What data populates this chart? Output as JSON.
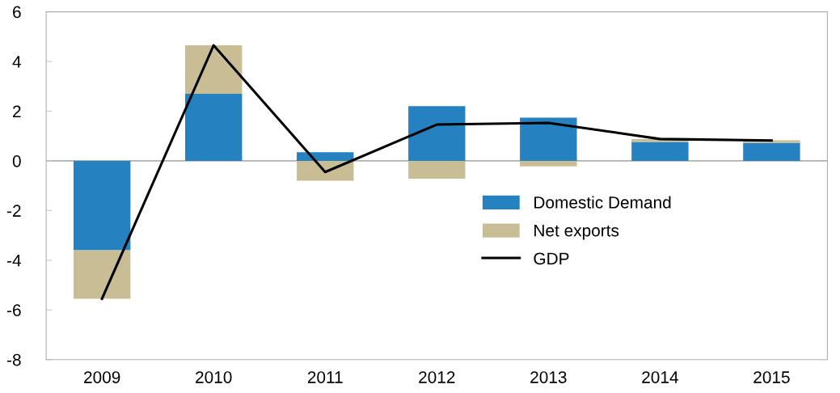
{
  "chart_data": {
    "type": "bar",
    "stacked": true,
    "categories": [
      "2009",
      "2010",
      "2011",
      "2012",
      "2013",
      "2014",
      "2015"
    ],
    "series": [
      {
        "name": "Domestic Demand",
        "color": "#2581bf",
        "values": [
          -3.6,
          2.7,
          0.35,
          2.2,
          1.74,
          0.76,
          0.72
        ]
      },
      {
        "name": "Net exports",
        "color": "#c9bd96",
        "values": [
          -1.95,
          1.95,
          -0.8,
          -0.72,
          -0.22,
          0.12,
          0.11
        ]
      },
      {
        "name": "GDP",
        "type": "line",
        "color": "#000000",
        "values": [
          -5.55,
          4.65,
          -0.45,
          1.46,
          1.53,
          0.88,
          0.82
        ]
      }
    ],
    "ylim": [
      -8,
      6
    ],
    "yticks": [
      -8,
      -6,
      -4,
      -2,
      0,
      2,
      4,
      6
    ],
    "ref_lines": [
      {
        "axis": "y",
        "value": 0,
        "color": "#b0b0b0"
      }
    ],
    "grid": false,
    "legend": "lower right",
    "marker": "none",
    "line_style": "solid"
  }
}
